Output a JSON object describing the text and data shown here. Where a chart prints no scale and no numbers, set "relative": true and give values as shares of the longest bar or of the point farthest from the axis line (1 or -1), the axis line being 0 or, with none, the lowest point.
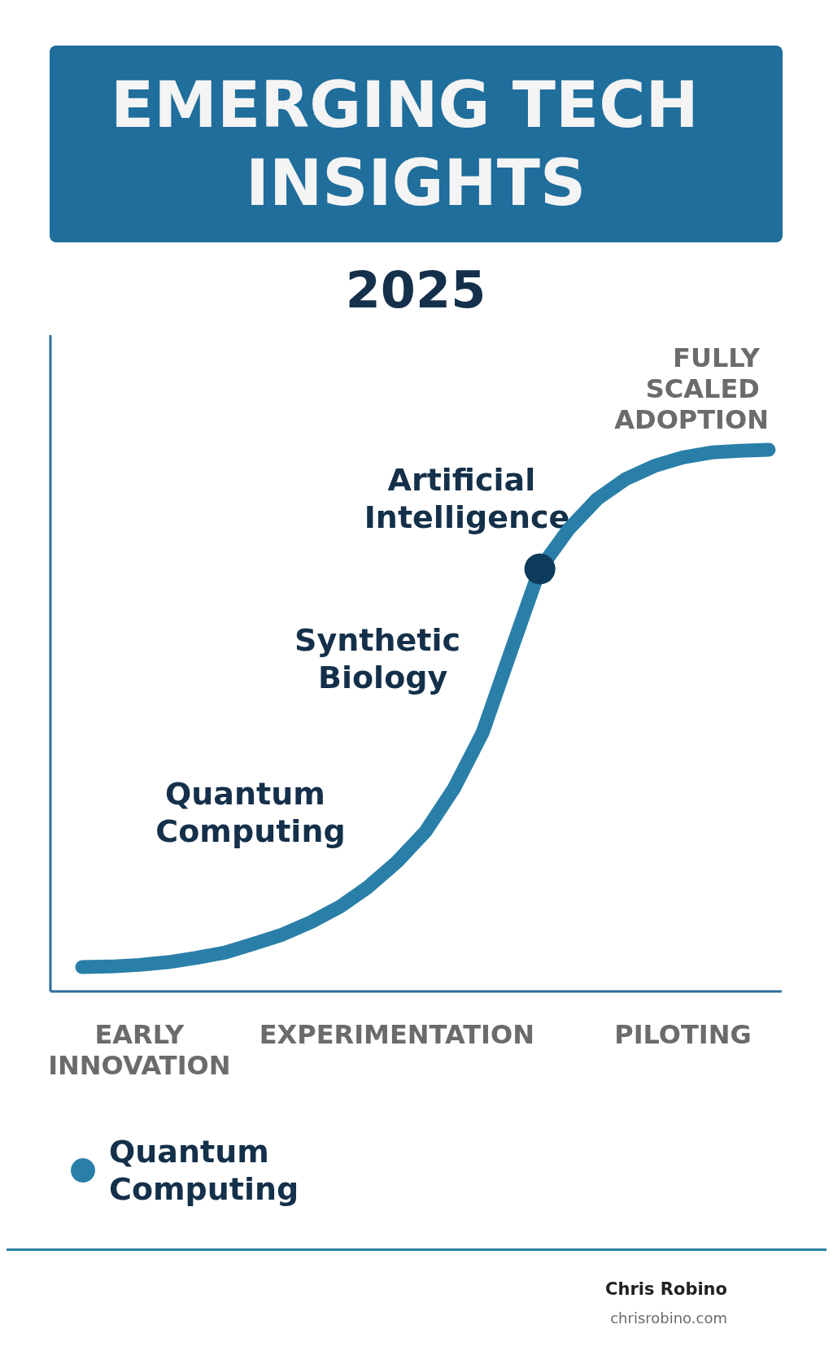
{
  "chart_data": {
    "type": "line",
    "title": "EMERGING TECH INSIGHTS",
    "subtitle": "2025",
    "relative": true,
    "categories": [
      null,
      null,
      "EARLY INNOVATION",
      null,
      null,
      null,
      null,
      null,
      null,
      null,
      null,
      "EXPERIMENTATION",
      null,
      null,
      null,
      null,
      null,
      null,
      null,
      null,
      null,
      "PILOTING",
      null,
      null,
      null
    ],
    "series": [
      {
        "name": "Quantum Computing",
        "color": "#2a7fa8",
        "marker": "none",
        "values": [
          0.045,
          0.046,
          0.049,
          0.054,
          0.062,
          0.072,
          0.088,
          0.105,
          0.128,
          0.156,
          0.193,
          0.239,
          0.295,
          0.375,
          0.478,
          0.63,
          0.78,
          0.853,
          0.909,
          0.946,
          0.97,
          0.986,
          0.995,
          0.998,
          1
        ]
      },
      {
        "type": "scatter",
        "color": "#0d3b5c",
        "marker": "circle",
        "values": [
          null,
          null,
          null,
          null,
          null,
          null,
          null,
          null,
          null,
          null,
          null,
          null,
          null,
          null,
          null,
          null,
          0.78,
          null,
          null,
          null,
          null,
          null,
          null,
          null,
          null
        ]
      }
    ],
    "annotations": [
      "FULLY SCALED ADOPTION",
      "Artificial Intelligence",
      "Synthetic Biology",
      "Quantum Computing",
      "Chris Robino",
      "chrisrobino.com"
    ],
    "legend": "bottom left",
    "line_style": "solid",
    "grid": false
  }
}
